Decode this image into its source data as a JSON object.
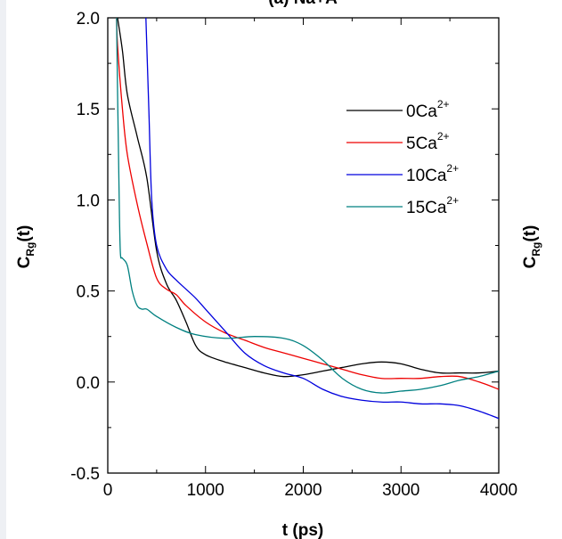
{
  "chart_data": {
    "type": "line",
    "title": "(a) Na+A",
    "xlabel": "t (ps)",
    "ylabel": "C",
    "ylabel_subscript": "Rg",
    "ylabel_suffix": "(t)",
    "right_ylabel": "C",
    "right_ylabel_subscript": "Rg",
    "right_ylabel_suffix": "(t)",
    "xlim": [
      0,
      4000
    ],
    "ylim": [
      -0.5,
      2.0
    ],
    "xticks": [
      0,
      1000,
      2000,
      3000,
      4000
    ],
    "xtick_labels": [
      "0",
      "1000",
      "2000",
      "3000",
      "4000"
    ],
    "yticks": [
      -0.5,
      0.0,
      0.5,
      1.0,
      1.5,
      2.0
    ],
    "ytick_labels": [
      "-0.5",
      "0.0",
      "0.5",
      "1.0",
      "1.5",
      "2.0"
    ],
    "grid": false,
    "legend_position": "top-right",
    "series": [
      {
        "name": "0Ca",
        "superscript": "2+",
        "color": "#000000",
        "x": [
          100,
          150,
          200,
          300,
          400,
          500,
          600,
          700,
          800,
          900,
          1000,
          1200,
          1400,
          1600,
          1800,
          2000,
          2200,
          2400,
          2600,
          2800,
          3000,
          3200,
          3400,
          3600,
          3800,
          4000
        ],
        "y": [
          2.0,
          1.82,
          1.58,
          1.35,
          1.12,
          0.72,
          0.54,
          0.45,
          0.33,
          0.2,
          0.15,
          0.11,
          0.08,
          0.05,
          0.03,
          0.04,
          0.06,
          0.08,
          0.1,
          0.11,
          0.1,
          0.07,
          0.05,
          0.05,
          0.05,
          0.06
        ]
      },
      {
        "name": "5Ca",
        "superscript": "2+",
        "color": "#ee0000",
        "x": [
          90,
          100,
          150,
          200,
          300,
          400,
          500,
          600,
          700,
          800,
          1000,
          1200,
          1400,
          1600,
          1800,
          2000,
          2200,
          2400,
          2600,
          2800,
          3000,
          3200,
          3400,
          3600,
          3800,
          4000
        ],
        "y": [
          2.0,
          1.85,
          1.5,
          1.25,
          0.98,
          0.76,
          0.57,
          0.51,
          0.48,
          0.42,
          0.33,
          0.27,
          0.23,
          0.19,
          0.16,
          0.13,
          0.1,
          0.07,
          0.04,
          0.02,
          0.02,
          0.02,
          0.03,
          0.03,
          0.0,
          -0.04
        ]
      },
      {
        "name": "10Ca",
        "superscript": "2+",
        "color": "#0000dd",
        "x": [
          390,
          420,
          450,
          500,
          600,
          700,
          800,
          900,
          1000,
          1200,
          1400,
          1600,
          1800,
          2000,
          2200,
          2400,
          2600,
          2800,
          3000,
          3200,
          3400,
          3600,
          3800,
          4000
        ],
        "y": [
          2.0,
          1.5,
          1.0,
          0.75,
          0.62,
          0.56,
          0.51,
          0.46,
          0.4,
          0.28,
          0.16,
          0.09,
          0.05,
          0.02,
          -0.04,
          -0.08,
          -0.1,
          -0.11,
          -0.11,
          -0.12,
          -0.12,
          -0.13,
          -0.16,
          -0.2
        ]
      },
      {
        "name": "15Ca",
        "superscript": "2+",
        "color": "#008080",
        "x": [
          90,
          100,
          110,
          120,
          130,
          150,
          200,
          250,
          300,
          350,
          400,
          500,
          700,
          900,
          1200,
          1500,
          1800,
          2000,
          2200,
          2400,
          2600,
          2800,
          3000,
          3200,
          3400,
          3600,
          3800,
          4000
        ],
        "y": [
          2.0,
          1.6,
          1.25,
          0.9,
          0.7,
          0.68,
          0.64,
          0.5,
          0.42,
          0.4,
          0.4,
          0.36,
          0.3,
          0.26,
          0.24,
          0.25,
          0.24,
          0.2,
          0.12,
          0.02,
          -0.04,
          -0.06,
          -0.05,
          -0.04,
          -0.02,
          0.01,
          0.03,
          0.06
        ]
      }
    ]
  }
}
